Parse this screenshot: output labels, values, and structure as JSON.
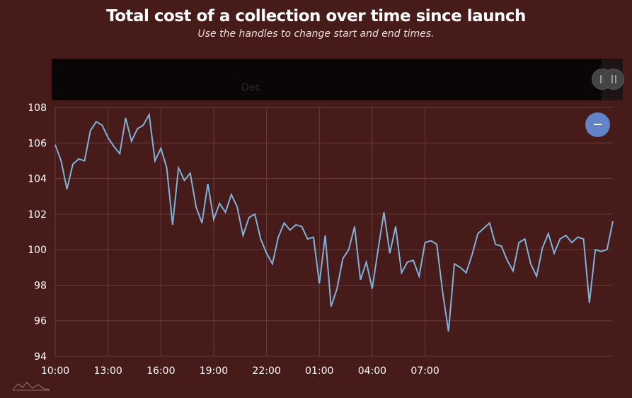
{
  "chart_data": {
    "type": "line",
    "title": "Total cost of a collection over time since launch",
    "subtitle": "Use the handles to change start and end times.",
    "scrollbar_label": "Dec",
    "xlabel": "",
    "ylabel": "",
    "ylim": [
      94,
      108
    ],
    "yticks": [
      94,
      96,
      98,
      100,
      102,
      104,
      106,
      108
    ],
    "xticks": [
      "10:00",
      "13:00",
      "16:00",
      "19:00",
      "22:00",
      "01:00",
      "04:00",
      "07:00"
    ],
    "x_start": "10:00",
    "x_end": "09:40",
    "x_step_minutes": 20,
    "grid": true,
    "line_color": "#7fb2da",
    "values": [
      105.9,
      105.0,
      103.4,
      104.8,
      105.1,
      105.0,
      106.7,
      107.2,
      107.0,
      106.3,
      105.8,
      105.4,
      107.4,
      106.1,
      106.8,
      107.0,
      107.6,
      105.0,
      105.7,
      104.6,
      101.4,
      104.6,
      103.9,
      104.3,
      102.4,
      101.5,
      103.7,
      101.7,
      102.6,
      102.1,
      103.1,
      102.4,
      100.8,
      101.8,
      102.0,
      100.6,
      99.8,
      99.2,
      100.7,
      101.5,
      101.1,
      101.4,
      101.3,
      100.6,
      100.7,
      98.1,
      100.8,
      96.8,
      97.8,
      99.5,
      100.0,
      101.3,
      98.3,
      99.3,
      97.8,
      100.0,
      102.1,
      99.8,
      101.3,
      98.7,
      99.3,
      99.4,
      98.5,
      100.4,
      100.5,
      100.3,
      97.6,
      95.4,
      99.2,
      99.0,
      98.7,
      99.7,
      100.9,
      101.2,
      101.5,
      100.3,
      100.2,
      99.4,
      98.8,
      100.4,
      100.6,
      99.2,
      98.5,
      100.1,
      100.9,
      99.8,
      100.6,
      100.8,
      100.4,
      100.7,
      100.6,
      97.0,
      100.0,
      99.9,
      100.0,
      101.6
    ]
  },
  "colors": {
    "background": "#471b19",
    "grid": "#6a3b37",
    "zoom_button": "#6283c5"
  }
}
